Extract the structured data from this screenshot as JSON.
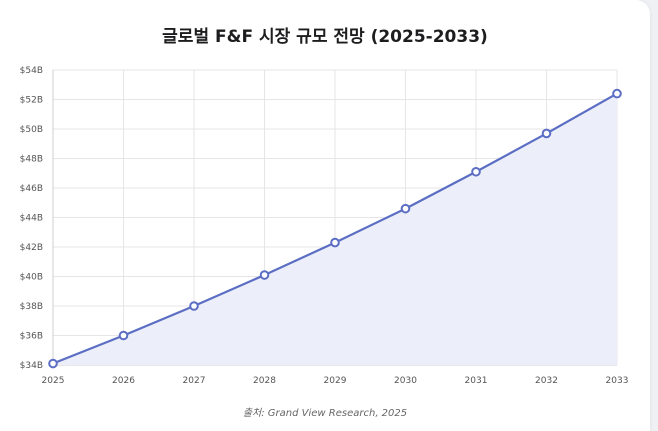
{
  "chart_data": {
    "type": "area",
    "title": "글로벌 F&F 시장 규모 전망 (2025-2033)",
    "categories": [
      "2025",
      "2026",
      "2027",
      "2028",
      "2029",
      "2030",
      "2031",
      "2032",
      "2033"
    ],
    "series": [
      {
        "values": [
          34.1,
          36.0,
          38.0,
          40.1,
          42.3,
          44.6,
          47.1,
          49.7,
          52.4
        ]
      }
    ],
    "ylim": [
      34,
      54
    ],
    "yticks": [
      34,
      36,
      38,
      40,
      42,
      44,
      46,
      48,
      50,
      52,
      54
    ],
    "ytick_labels": [
      "$34B",
      "$36B",
      "$38B",
      "$40B",
      "$42B",
      "$44B",
      "$46B",
      "$48B",
      "$50B",
      "$52B",
      "$54B"
    ],
    "grid": true,
    "line_color": "#5b6ec4",
    "fill_color": "#eceffa"
  },
  "source": "출처: Grand View Research, 2025"
}
